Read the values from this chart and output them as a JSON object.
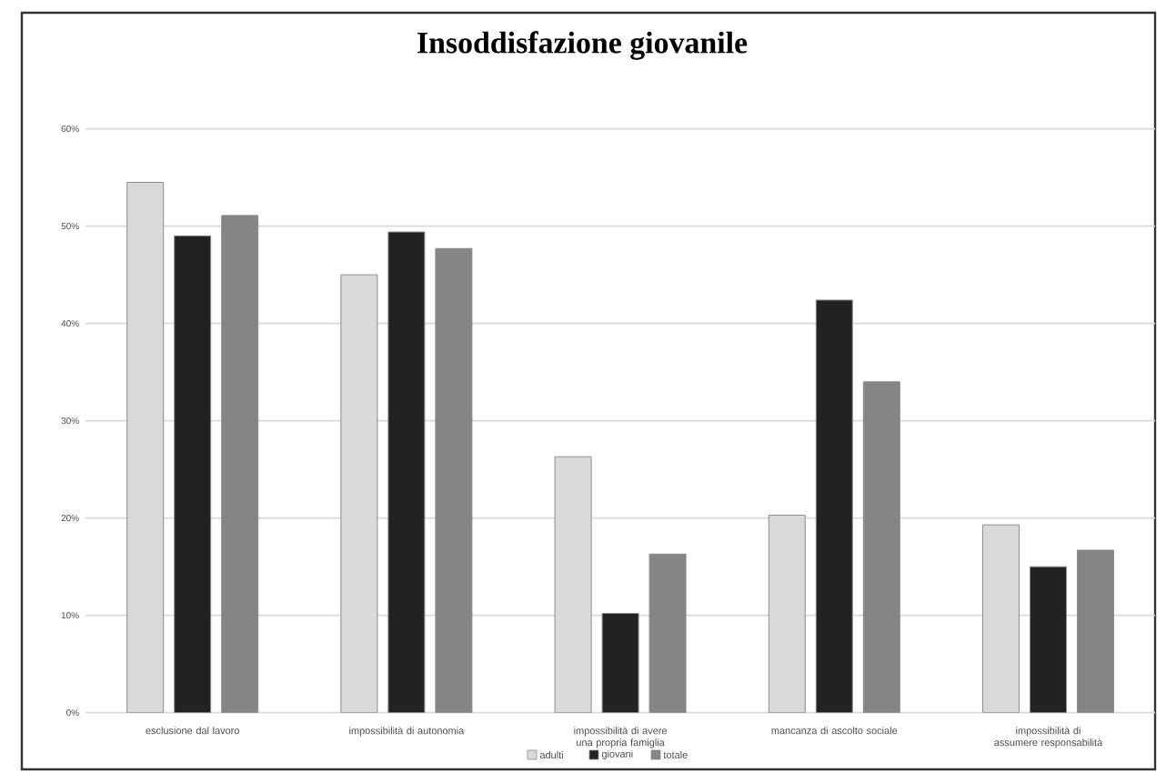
{
  "chart_data": {
    "type": "bar",
    "title": "Insoddisfazione giovanile",
    "categories": [
      "esclusione dal lavoro",
      "impossibilità di autonomia",
      "impossibilità di avere una propria famiglia",
      "mancanza di ascolto sociale",
      "impossibilità di assumere responsabilità"
    ],
    "series": [
      {
        "name": "adulti",
        "color": "#d9d9d9",
        "values": [
          54.5,
          45.0,
          26.3,
          20.3,
          19.3
        ]
      },
      {
        "name": "giovani",
        "color": "#222222",
        "values": [
          49.0,
          49.4,
          10.2,
          42.4,
          15.0
        ]
      },
      {
        "name": "totale",
        "color": "#858585",
        "values": [
          51.1,
          47.7,
          16.3,
          34.0,
          16.7
        ]
      }
    ],
    "ylim": [
      0,
      60
    ],
    "yticks": [
      {
        "value": 0,
        "label": "0%"
      },
      {
        "value": 10,
        "label": "10%"
      },
      {
        "value": 20,
        "label": "20%"
      },
      {
        "value": 30,
        "label": "30%"
      },
      {
        "value": 40,
        "label": "40%"
      },
      {
        "value": 50,
        "label": "50%"
      },
      {
        "value": 60,
        "label": "60%"
      }
    ],
    "grid": "y",
    "legend": "bottom"
  }
}
